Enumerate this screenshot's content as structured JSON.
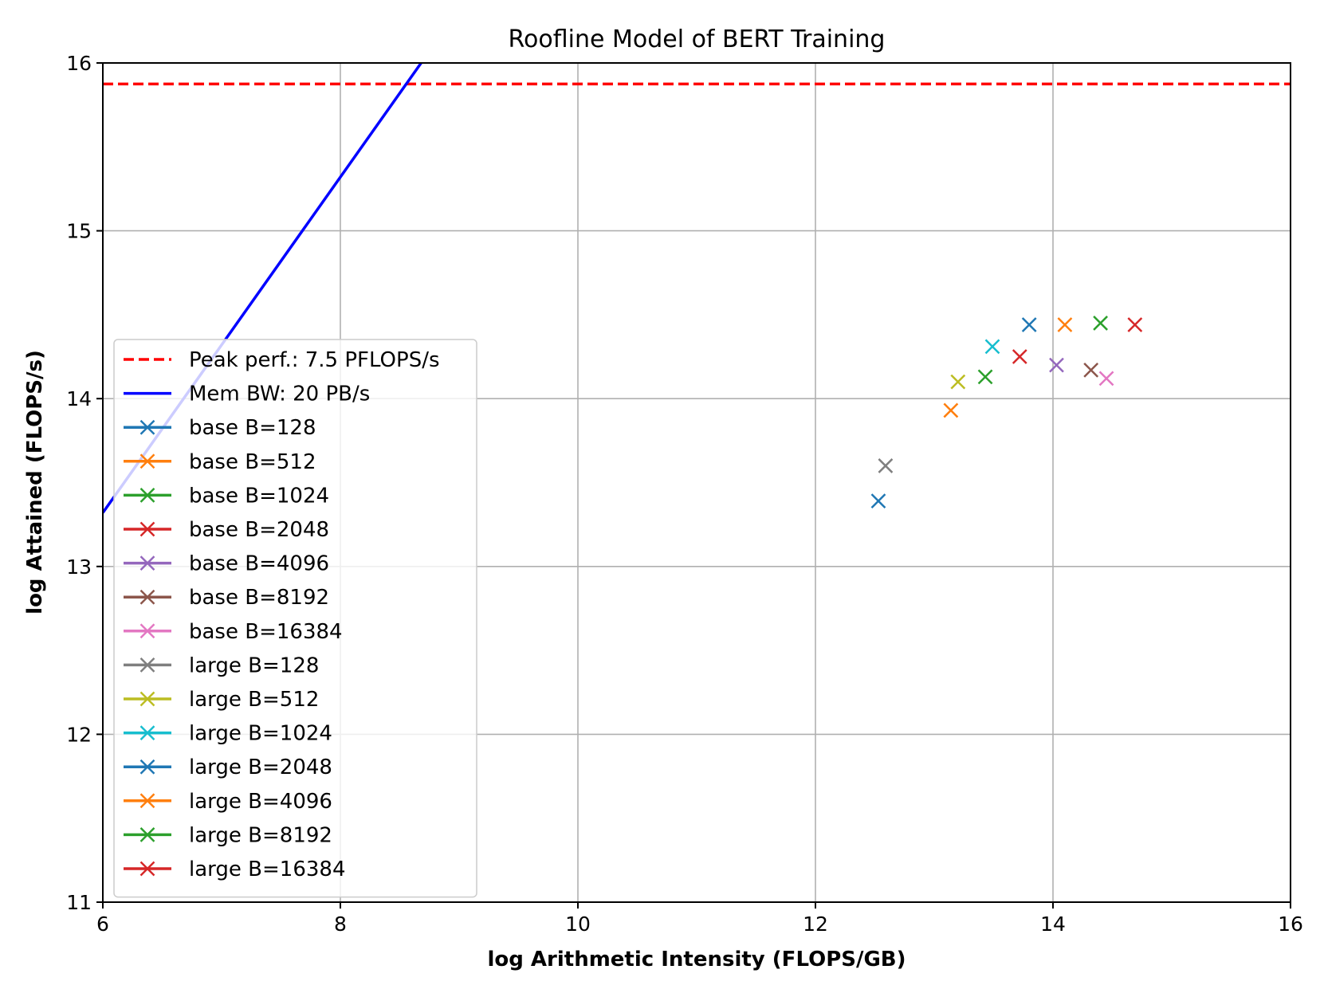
{
  "chart_data": {
    "type": "scatter",
    "title": "Roofline Model of BERT Training",
    "xlabel": "log Arithmetic Intensity (FLOPS/GB)",
    "ylabel": "log Attained (FLOPS/s)",
    "xlim": [
      6,
      16
    ],
    "ylim": [
      11,
      16
    ],
    "x_ticks": [
      "6",
      "8",
      "10",
      "12",
      "14",
      "16"
    ],
    "y_ticks": [
      "11",
      "12",
      "13",
      "14",
      "15",
      "16"
    ],
    "grid": true,
    "legend_position": "center-left",
    "peak": {
      "name": "Peak perf.: 7.5 PFLOPS/s",
      "y": 15.875,
      "color": "#ff0000",
      "style": "dashed"
    },
    "mem_bw": {
      "name": "Mem BW: 20 PB/s",
      "color": "#0000ff",
      "x": [
        6.0,
        8.68
      ],
      "y": [
        13.32,
        16.0
      ]
    },
    "series": [
      {
        "name": "base B=128",
        "color": "#1f77b4",
        "x": 12.53,
        "y": 13.39
      },
      {
        "name": "base B=512",
        "color": "#ff7f0e",
        "x": 13.14,
        "y": 13.93
      },
      {
        "name": "base B=1024",
        "color": "#2ca02c",
        "x": 13.43,
        "y": 14.13
      },
      {
        "name": "base B=2048",
        "color": "#d62728",
        "x": 13.72,
        "y": 14.25
      },
      {
        "name": "base B=4096",
        "color": "#9467bd",
        "x": 14.03,
        "y": 14.2
      },
      {
        "name": "base B=8192",
        "color": "#8c564b",
        "x": 14.32,
        "y": 14.17
      },
      {
        "name": "base B=16384",
        "color": "#e377c2",
        "x": 14.45,
        "y": 14.12
      },
      {
        "name": "large B=128",
        "color": "#7f7f7f",
        "x": 12.59,
        "y": 13.6
      },
      {
        "name": "large B=512",
        "color": "#bcbd22",
        "x": 13.2,
        "y": 14.1
      },
      {
        "name": "large B=1024",
        "color": "#17becf",
        "x": 13.49,
        "y": 14.31
      },
      {
        "name": "large B=2048",
        "color": "#1f77b4",
        "x": 13.8,
        "y": 14.44
      },
      {
        "name": "large B=4096",
        "color": "#ff7f0e",
        "x": 14.1,
        "y": 14.44
      },
      {
        "name": "large B=8192",
        "color": "#2ca02c",
        "x": 14.4,
        "y": 14.45
      },
      {
        "name": "large B=16384",
        "color": "#d62728",
        "x": 14.69,
        "y": 14.44
      }
    ]
  }
}
